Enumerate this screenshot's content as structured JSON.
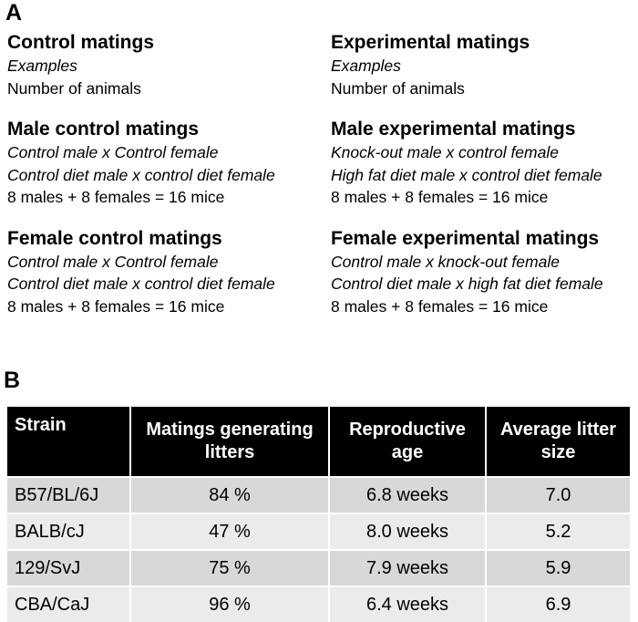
{
  "panel_a": {
    "label": "A",
    "left": [
      {
        "title": "Control matings",
        "italic_lines": [
          "Examples"
        ],
        "count": "Number of animals"
      },
      {
        "title": "Male control matings",
        "italic_lines": [
          "Control male x Control female",
          "Control diet male x control diet female"
        ],
        "count": "8 males + 8 females = 16 mice"
      },
      {
        "title": "Female control matings",
        "italic_lines": [
          "Control male x Control female",
          "Control diet male x control diet female"
        ],
        "count": "8 males + 8 females = 16 mice"
      }
    ],
    "right": [
      {
        "title": "Experimental matings",
        "italic_lines": [
          "Examples"
        ],
        "count": "Number of animals"
      },
      {
        "title": "Male experimental matings",
        "italic_lines": [
          "Knock-out male x control female",
          "High fat diet male x control diet female"
        ],
        "count": "8 males + 8 females = 16 mice"
      },
      {
        "title": "Female experimental matings",
        "italic_lines": [
          "Control male x knock-out female",
          "Control diet male x high fat diet female"
        ],
        "count": "8 males + 8 females = 16 mice"
      }
    ]
  },
  "panel_b": {
    "label": "B",
    "headers": [
      "Strain",
      "Matings generating litters",
      "Reproductive age",
      "Average litter size"
    ],
    "rows": [
      [
        "B57/BL/6J",
        "84 %",
        "6.8 weeks",
        "7.0"
      ],
      [
        "BALB/cJ",
        "47 %",
        "8.0 weeks",
        "5.2"
      ],
      [
        "129/SvJ",
        "75 %",
        "7.9 weeks",
        "5.9"
      ],
      [
        "CBA/CaJ",
        "96 %",
        "6.4 weeks",
        "6.9"
      ]
    ]
  }
}
